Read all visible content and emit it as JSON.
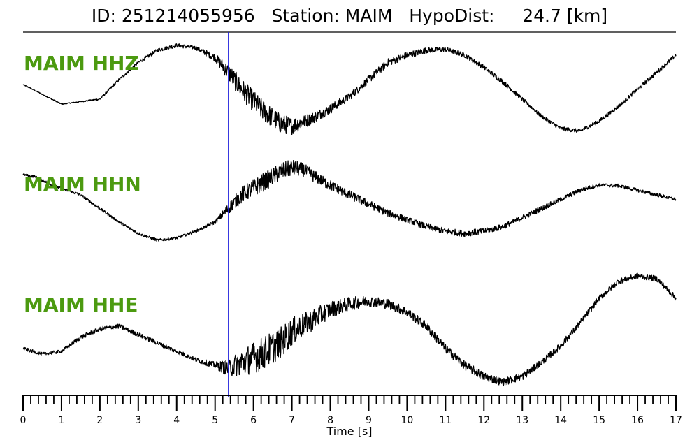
{
  "header": {
    "title": "ID: 251214055956   Station: MAIM   HypoDist:     24.7 [km]"
  },
  "colors": {
    "trace": "#000000",
    "pick_line": "#1a1adb",
    "label": "#4c9a10"
  },
  "chart_data": {
    "type": "line",
    "title": "ID: 251214055956   Station: MAIM   HypoDist:     24.7 [km]",
    "xlabel": "Time [s]",
    "ylabel": "",
    "xlim": [
      0,
      17
    ],
    "xticks": [
      0,
      1,
      2,
      3,
      4,
      5,
      6,
      7,
      8,
      9,
      10,
      11,
      12,
      13,
      14,
      15,
      16,
      17
    ],
    "minor_tick_step": 0.2,
    "grid": false,
    "pick_time": 5.35,
    "series": [
      {
        "name": "MAIM HHZ",
        "t": [
          0,
          0.5,
          1.0,
          1.5,
          2.0,
          2.5,
          3.0,
          3.5,
          4.0,
          4.5,
          5.0,
          5.35,
          5.7,
          6.2,
          6.7,
          7.0,
          7.5,
          8.0,
          8.5,
          9.0,
          9.5,
          10.0,
          10.5,
          11.0,
          11.5,
          12.0,
          12.5,
          13.0,
          13.5,
          14.0,
          14.5,
          15.0,
          15.5,
          16.0,
          16.5,
          17.0
        ],
        "amp": [
          0.2,
          0.0,
          -0.2,
          -0.15,
          -0.1,
          0.3,
          0.65,
          0.9,
          1.0,
          0.95,
          0.75,
          0.45,
          0.1,
          -0.3,
          -0.6,
          -0.65,
          -0.5,
          -0.3,
          -0.05,
          0.3,
          0.65,
          0.8,
          0.9,
          0.92,
          0.8,
          0.55,
          0.25,
          -0.1,
          -0.45,
          -0.7,
          -0.75,
          -0.55,
          -0.25,
          0.1,
          0.45,
          0.8
        ],
        "noise": [
          0.01,
          0.01,
          0.01,
          0.01,
          0.02,
          0.03,
          0.03,
          0.04,
          0.04,
          0.04,
          0.08,
          0.18,
          0.22,
          0.22,
          0.2,
          0.18,
          0.12,
          0.1,
          0.08,
          0.08,
          0.08,
          0.07,
          0.06,
          0.05,
          0.05,
          0.05,
          0.05,
          0.04,
          0.04,
          0.04,
          0.04,
          0.04,
          0.04,
          0.04,
          0.04,
          0.04
        ]
      },
      {
        "name": "MAIM HHN",
        "t": [
          0,
          0.3,
          0.8,
          1.5,
          2.0,
          2.5,
          3.0,
          3.5,
          4.0,
          4.5,
          5.0,
          5.35,
          5.7,
          6.2,
          6.7,
          7.0,
          7.3,
          7.8,
          8.5,
          9.0,
          9.5,
          10.0,
          10.5,
          11.0,
          11.5,
          12.0,
          12.5,
          13.0,
          13.5,
          14.0,
          14.5,
          15.0,
          15.5,
          16.0,
          16.5,
          17.0
        ],
        "amp": [
          0.85,
          0.8,
          0.6,
          0.4,
          0.1,
          -0.2,
          -0.45,
          -0.6,
          -0.55,
          -0.4,
          -0.2,
          0.1,
          0.4,
          0.65,
          0.9,
          1.0,
          0.95,
          0.7,
          0.4,
          0.2,
          0.0,
          -0.15,
          -0.3,
          -0.4,
          -0.45,
          -0.4,
          -0.3,
          -0.1,
          0.1,
          0.3,
          0.5,
          0.62,
          0.6,
          0.5,
          0.4,
          0.3
        ],
        "noise": [
          0.02,
          0.03,
          0.03,
          0.03,
          0.03,
          0.03,
          0.03,
          0.03,
          0.03,
          0.03,
          0.04,
          0.12,
          0.18,
          0.2,
          0.2,
          0.18,
          0.15,
          0.12,
          0.1,
          0.09,
          0.08,
          0.07,
          0.07,
          0.07,
          0.07,
          0.07,
          0.06,
          0.06,
          0.06,
          0.05,
          0.05,
          0.04,
          0.04,
          0.04,
          0.04,
          0.04
        ]
      },
      {
        "name": "MAIM HHE",
        "t": [
          0,
          0.5,
          1.0,
          1.5,
          2.0,
          2.5,
          3.0,
          3.5,
          4.0,
          4.5,
          5.0,
          5.35,
          5.7,
          6.2,
          6.7,
          7.0,
          7.5,
          8.0,
          8.5,
          9.0,
          9.5,
          10.0,
          10.5,
          11.0,
          11.5,
          12.0,
          12.5,
          13.0,
          13.5,
          14.0,
          14.5,
          15.0,
          15.5,
          16.0,
          16.5,
          17.0
        ],
        "amp": [
          -0.3,
          -0.4,
          -0.35,
          -0.1,
          0.05,
          0.1,
          -0.05,
          -0.2,
          -0.35,
          -0.5,
          -0.6,
          -0.65,
          -0.55,
          -0.4,
          -0.2,
          0.0,
          0.2,
          0.4,
          0.5,
          0.55,
          0.5,
          0.35,
          0.1,
          -0.3,
          -0.6,
          -0.8,
          -0.9,
          -0.8,
          -0.55,
          -0.25,
          0.15,
          0.6,
          0.9,
          1.0,
          0.95,
          0.6
        ],
        "noise": [
          0.03,
          0.03,
          0.03,
          0.04,
          0.04,
          0.04,
          0.04,
          0.04,
          0.04,
          0.04,
          0.06,
          0.15,
          0.25,
          0.3,
          0.28,
          0.25,
          0.2,
          0.15,
          0.12,
          0.1,
          0.09,
          0.08,
          0.08,
          0.08,
          0.08,
          0.08,
          0.07,
          0.07,
          0.06,
          0.06,
          0.06,
          0.05,
          0.05,
          0.05,
          0.05,
          0.05
        ]
      }
    ]
  }
}
